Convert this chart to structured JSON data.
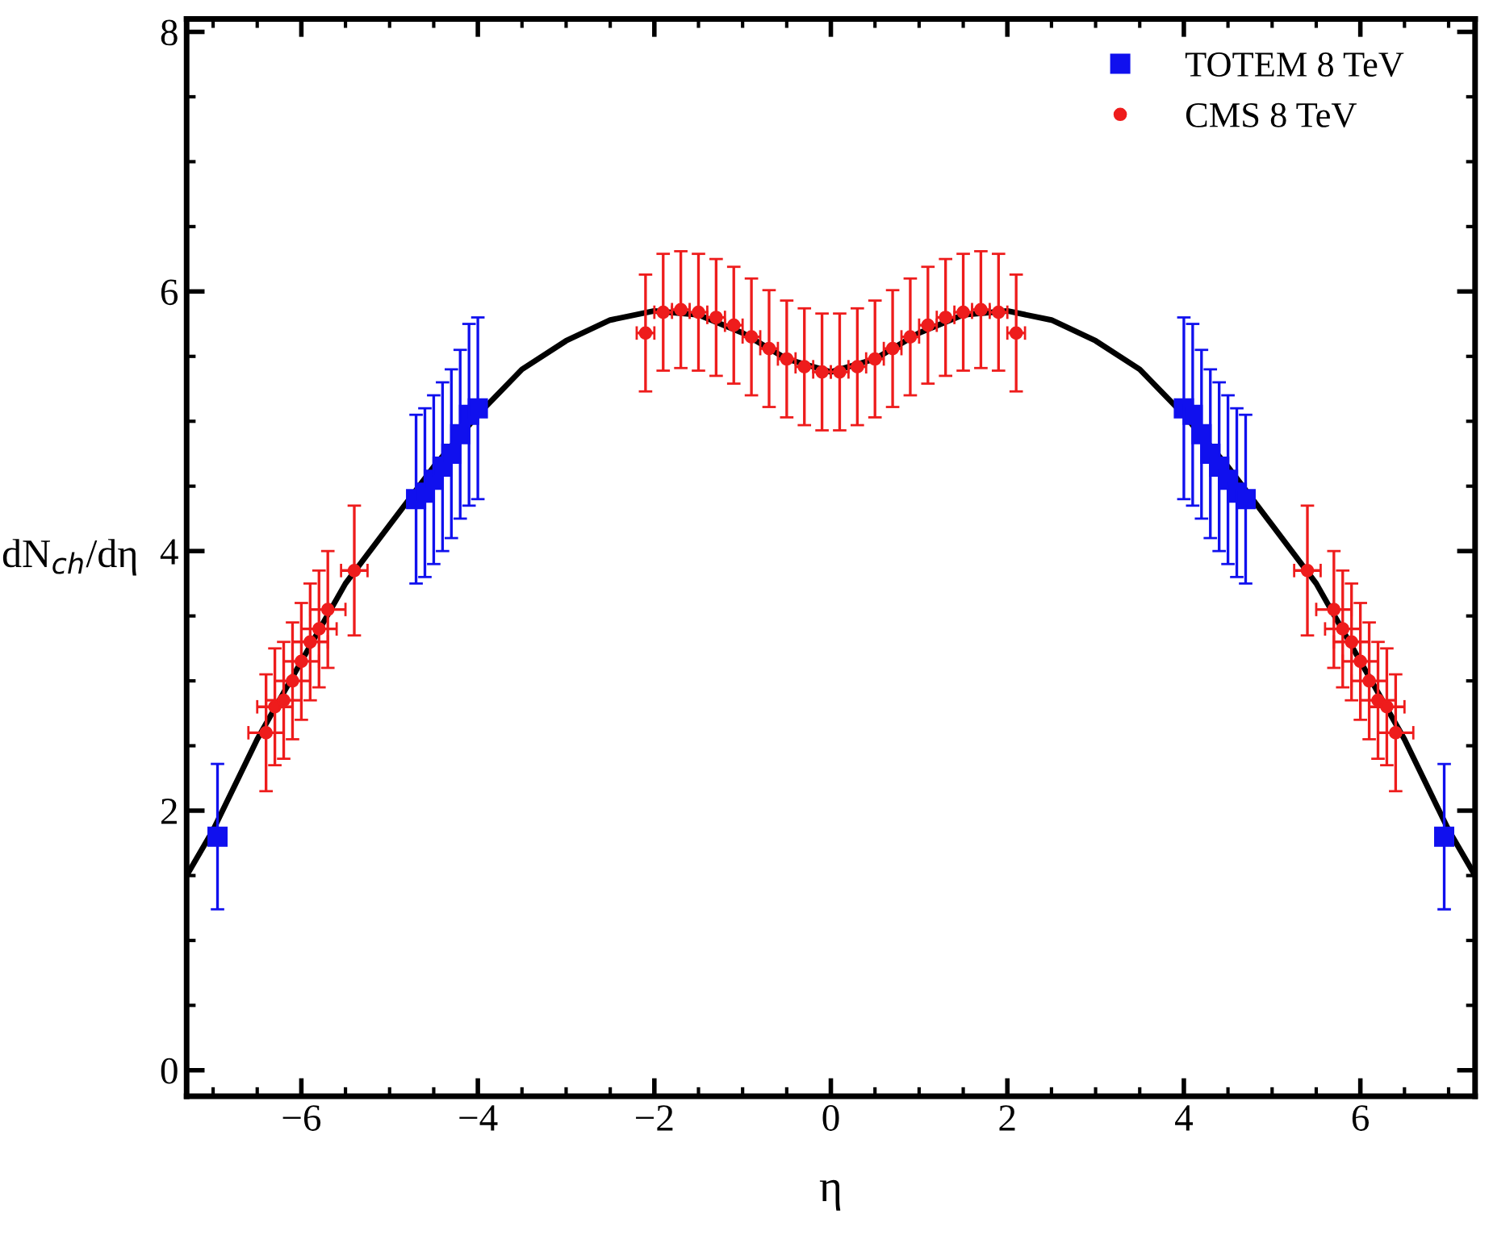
{
  "chart_data": {
    "type": "scatter",
    "xlabel": "η",
    "ylabel": "dN$_{ch}$/dη",
    "xlim": [
      -7.3,
      7.3
    ],
    "ylim": [
      -0.2,
      8.1
    ],
    "xticks": [
      -6,
      -4,
      -2,
      0,
      2,
      4,
      6
    ],
    "yticks": [
      0,
      2,
      4,
      6,
      8
    ],
    "grid": false,
    "legend": "top right",
    "series": [
      {
        "type": "line",
        "color": "#000000",
        "marker": "none",
        "line_style": "solid",
        "x": [
          -7.3,
          -7.0,
          -6.5,
          -6.0,
          -5.5,
          -5.0,
          -4.5,
          -4.0,
          -3.5,
          -3.0,
          -2.5,
          -2.0,
          -1.5,
          -1.0,
          -0.5,
          0.0,
          0.5,
          1.0,
          1.5,
          2.0,
          2.5,
          3.0,
          3.5,
          4.0,
          4.5,
          5.0,
          5.5,
          6.0,
          6.5,
          7.0,
          7.3
        ],
        "values": [
          1.5,
          1.85,
          2.55,
          3.15,
          3.75,
          4.2,
          4.65,
          5.05,
          5.4,
          5.62,
          5.78,
          5.85,
          5.82,
          5.68,
          5.48,
          5.38,
          5.48,
          5.68,
          5.82,
          5.85,
          5.78,
          5.62,
          5.4,
          5.05,
          4.65,
          4.2,
          3.75,
          3.15,
          2.55,
          1.85,
          1.5
        ]
      },
      {
        "type": "scatter",
        "name": "TOTEM 8 TeV",
        "color": "#1010ee",
        "marker": "square",
        "x": [
          -6.95,
          -4.7,
          -4.6,
          -4.5,
          -4.4,
          -4.3,
          -4.2,
          -4.1,
          -4.0,
          4.0,
          4.1,
          4.2,
          4.3,
          4.4,
          4.5,
          4.6,
          4.7,
          6.95
        ],
        "values": [
          1.8,
          4.4,
          4.45,
          4.55,
          4.65,
          4.75,
          4.9,
          5.05,
          5.1,
          5.1,
          5.05,
          4.9,
          4.75,
          4.65,
          4.55,
          4.45,
          4.4,
          1.8
        ],
        "errors": [
          0.56,
          0.65,
          0.65,
          0.65,
          0.65,
          0.65,
          0.65,
          0.7,
          0.7,
          0.7,
          0.7,
          0.65,
          0.65,
          0.65,
          0.65,
          0.65,
          0.65,
          0.56
        ]
      },
      {
        "type": "scatter",
        "name": "CMS 8 TeV",
        "color": "#ee1c1c",
        "marker": "circle",
        "x": [
          -6.4,
          -6.3,
          -6.2,
          -6.1,
          -6.0,
          -5.9,
          -5.8,
          -5.7,
          -5.4,
          -2.1,
          -1.9,
          -1.7,
          -1.5,
          -1.3,
          -1.1,
          -0.9,
          -0.7,
          -0.5,
          -0.3,
          -0.1,
          0.1,
          0.3,
          0.5,
          0.7,
          0.9,
          1.1,
          1.3,
          1.5,
          1.7,
          1.9,
          2.1,
          5.4,
          5.7,
          5.8,
          5.9,
          6.0,
          6.1,
          6.2,
          6.3,
          6.4
        ],
        "values": [
          2.6,
          2.8,
          2.85,
          3.0,
          3.15,
          3.3,
          3.4,
          3.55,
          3.85,
          5.68,
          5.84,
          5.86,
          5.84,
          5.8,
          5.74,
          5.65,
          5.56,
          5.48,
          5.42,
          5.38,
          5.38,
          5.42,
          5.48,
          5.56,
          5.65,
          5.74,
          5.8,
          5.84,
          5.86,
          5.84,
          5.68,
          3.85,
          3.55,
          3.4,
          3.3,
          3.15,
          3.0,
          2.85,
          2.8,
          2.6
        ],
        "errors": [
          0.45,
          0.45,
          0.45,
          0.45,
          0.45,
          0.45,
          0.45,
          0.45,
          0.5,
          0.45,
          0.45,
          0.45,
          0.45,
          0.45,
          0.45,
          0.45,
          0.45,
          0.45,
          0.45,
          0.45,
          0.45,
          0.45,
          0.45,
          0.45,
          0.45,
          0.45,
          0.45,
          0.45,
          0.45,
          0.45,
          0.45,
          0.5,
          0.45,
          0.45,
          0.45,
          0.45,
          0.45,
          0.45,
          0.45,
          0.45
        ],
        "xerrors": [
          0.2,
          0.2,
          0.2,
          0.2,
          0.2,
          0.2,
          0.2,
          0.2,
          0.15,
          0.1,
          0.1,
          0.1,
          0.1,
          0.1,
          0.1,
          0.1,
          0.1,
          0.1,
          0.1,
          0.1,
          0.1,
          0.1,
          0.1,
          0.1,
          0.1,
          0.1,
          0.1,
          0.1,
          0.1,
          0.1,
          0.1,
          0.15,
          0.2,
          0.2,
          0.2,
          0.2,
          0.2,
          0.2,
          0.2,
          0.2
        ]
      }
    ]
  }
}
